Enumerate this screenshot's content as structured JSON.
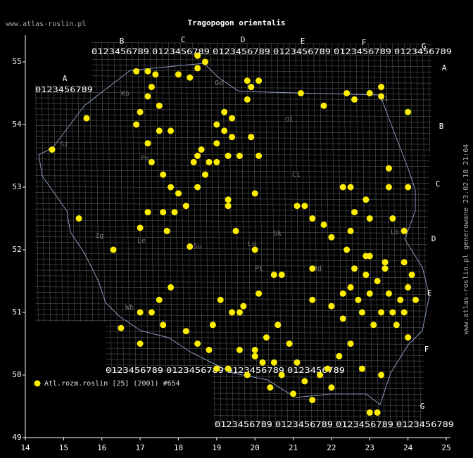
{
  "watermark": "www.atlas-roslin.pl",
  "side_note": "www.atlas-roslin.pl generowane 23.02.18 21:04",
  "grid_letters": [
    "A",
    "B",
    "C",
    "D",
    "E",
    "F",
    "G"
  ],
  "grid_digits": "0123456789",
  "regions": [
    "Ko",
    "Ol",
    "Bi",
    "Sz",
    "Po",
    "Zg",
    "Le",
    "Ld",
    "Sk",
    "Pt",
    "Rd",
    "Wb",
    "Ci",
    "Gd",
    "Su",
    "Lb"
  ],
  "chart_data": {
    "type": "scatter",
    "title": "Tragopogon orientalis",
    "xlim": [
      14,
      25
    ],
    "ylim": [
      49,
      55
    ],
    "xticks": [
      14,
      15,
      16,
      17,
      18,
      19,
      20,
      21,
      22,
      23,
      24,
      25
    ],
    "yticks": [
      49,
      50,
      51,
      52,
      53,
      54,
      55
    ],
    "series": [
      {
        "name": "Atl.rozm.roslin [25] (2001) #654",
        "color": "#ffee00",
        "x": [
          16.9,
          17.2,
          17.4,
          17.3,
          17.2,
          17.0,
          16.9,
          17.5,
          18.0,
          18.3,
          18.5,
          18.7,
          18.5,
          19.8,
          19.9,
          20.1,
          19.8,
          21.2,
          21.8,
          22.4,
          22.6,
          23.0,
          23.3,
          23.3,
          24.0,
          17.5,
          17.8,
          17.2,
          17.3,
          17.6,
          17.8,
          18.0,
          18.2,
          18.5,
          18.5,
          18.6,
          18.8,
          18.4,
          18.7,
          19.0,
          19.0,
          19.2,
          19.2,
          19.4,
          19.4,
          19.3,
          19.0,
          19.6,
          19.9,
          20.1,
          20.0,
          19.3,
          19.3,
          15.6,
          14.7,
          15.4,
          16.3,
          17.2,
          17.0,
          17.6,
          17.9,
          17.7,
          18.3,
          19.5,
          20.0,
          21.1,
          21.3,
          21.5,
          21.8,
          22.0,
          22.5,
          22.6,
          22.9,
          22.5,
          22.3,
          23.0,
          23.6,
          23.9,
          23.5,
          24.0,
          23.5,
          22.4,
          21.5,
          20.7,
          20.5,
          20.1,
          19.7,
          19.4,
          19.1,
          17.8,
          17.5,
          17.0,
          17.3,
          17.6,
          16.5,
          17.0,
          18.2,
          18.5,
          18.8,
          19.0,
          19.3,
          19.8,
          20.0,
          20.3,
          20.6,
          20.9,
          21.1,
          21.3,
          21.5,
          21.9,
          22.2,
          22.5,
          22.8,
          23.0,
          23.2,
          23.3,
          24.0,
          23.6,
          23.8,
          24.0,
          23.4,
          22.9,
          22.5,
          22.0,
          21.5,
          22.3,
          23.0,
          23.3,
          22.8,
          23.9,
          24.1,
          23.0,
          22.6,
          22.3,
          20.2,
          20.7,
          20.4,
          21.0,
          19.6,
          18.9,
          19.6,
          23.2,
          23.5,
          23.7,
          23.1,
          22.7,
          24.2,
          23.9,
          23.4,
          22.9,
          20.0,
          20.5,
          21.7,
          22.0
        ],
        "y": [
          54.85,
          54.85,
          54.8,
          54.6,
          54.45,
          54.2,
          54.0,
          54.3,
          54.8,
          54.75,
          54.9,
          55.0,
          55.1,
          54.7,
          54.6,
          54.7,
          54.4,
          54.5,
          54.3,
          54.5,
          54.4,
          54.5,
          54.6,
          54.45,
          54.2,
          53.9,
          53.9,
          53.7,
          53.4,
          53.2,
          53.0,
          52.9,
          52.7,
          53.0,
          53.5,
          53.6,
          53.4,
          53.4,
          53.2,
          53.4,
          53.7,
          53.9,
          54.2,
          54.1,
          53.8,
          53.5,
          54.0,
          53.5,
          53.8,
          53.5,
          52.9,
          52.7,
          52.8,
          54.1,
          53.6,
          52.5,
          52.0,
          52.6,
          52.35,
          52.6,
          52.6,
          52.3,
          52.05,
          52.3,
          52.0,
          52.7,
          52.7,
          52.5,
          52.4,
          52.2,
          52.3,
          52.6,
          52.8,
          53.0,
          53.0,
          52.5,
          52.5,
          52.3,
          53.0,
          53.0,
          53.3,
          52.0,
          51.7,
          51.6,
          51.6,
          51.3,
          51.1,
          51.0,
          51.2,
          51.4,
          51.2,
          51.0,
          51.0,
          50.8,
          50.75,
          50.5,
          50.7,
          50.5,
          50.4,
          50.1,
          50.1,
          50.0,
          50.4,
          50.6,
          50.8,
          50.5,
          50.2,
          49.9,
          49.6,
          50.1,
          50.3,
          50.5,
          50.1,
          49.4,
          49.4,
          50.0,
          50.6,
          51.0,
          51.2,
          51.4,
          51.7,
          51.6,
          51.4,
          51.1,
          51.2,
          51.3,
          51.3,
          51.0,
          51.0,
          51.0,
          51.6,
          51.9,
          51.7,
          50.9,
          50.2,
          50.0,
          49.8,
          49.7,
          50.4,
          50.8,
          51.0,
          51.5,
          51.3,
          50.8,
          50.8,
          51.2,
          51.2,
          51.8,
          51.8,
          51.9,
          50.3,
          50.2,
          50.0,
          49.8
        ]
      }
    ]
  }
}
